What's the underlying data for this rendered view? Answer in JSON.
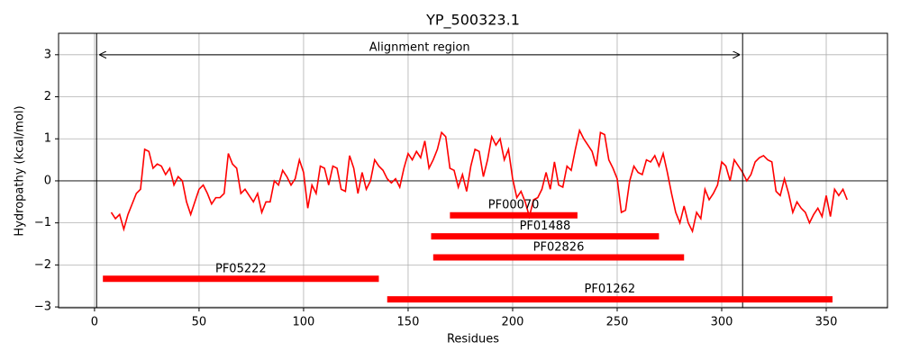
{
  "chart_data": {
    "type": "line",
    "title": "YP_500323.1",
    "xlabel": "Residues",
    "ylabel": "Hydropathy (kcal/mol)",
    "color": "#ff0000",
    "x": [
      8,
      10,
      12,
      14,
      16,
      18,
      20,
      22,
      24,
      26,
      28,
      30,
      32,
      34,
      36,
      38,
      40,
      42,
      44,
      46,
      48,
      50,
      52,
      54,
      56,
      58,
      60,
      62,
      64,
      66,
      68,
      70,
      72,
      74,
      76,
      78,
      80,
      82,
      84,
      86,
      88,
      90,
      92,
      94,
      96,
      98,
      100,
      102,
      104,
      106,
      108,
      110,
      112,
      114,
      116,
      118,
      120,
      122,
      124,
      126,
      128,
      130,
      132,
      134,
      136,
      138,
      140,
      142,
      144,
      146,
      148,
      150,
      152,
      154,
      156,
      158,
      160,
      162,
      164,
      166,
      168,
      170,
      172,
      174,
      176,
      178,
      180,
      182,
      184,
      186,
      188,
      190,
      192,
      194,
      196,
      198,
      200,
      202,
      204,
      206,
      208,
      210,
      212,
      214,
      216,
      218,
      220,
      222,
      224,
      226,
      228,
      230,
      232,
      234,
      236,
      238,
      240,
      242,
      244,
      246,
      248,
      250,
      252,
      254,
      256,
      258,
      260,
      262,
      264,
      266,
      268,
      270,
      272,
      274,
      276,
      278,
      280,
      282,
      284,
      286,
      288,
      290,
      292,
      294,
      296,
      298,
      300,
      302,
      304,
      306,
      308,
      310,
      312,
      314,
      316,
      318,
      320,
      322,
      324,
      326,
      328,
      330,
      332,
      334,
      336,
      338,
      340,
      342,
      344,
      346,
      348,
      350,
      352,
      354,
      356,
      358,
      360
    ],
    "values": [
      -0.75,
      -0.9,
      -0.8,
      -1.15,
      -0.8,
      -0.55,
      -0.3,
      -0.2,
      0.75,
      0.7,
      0.3,
      0.4,
      0.35,
      0.15,
      0.3,
      -0.1,
      0.1,
      0.0,
      -0.5,
      -0.8,
      -0.5,
      -0.2,
      -0.1,
      -0.3,
      -0.55,
      -0.4,
      -0.4,
      -0.3,
      0.65,
      0.4,
      0.3,
      -0.3,
      -0.2,
      -0.35,
      -0.5,
      -0.3,
      -0.75,
      -0.5,
      -0.5,
      0.0,
      -0.1,
      0.25,
      0.1,
      -0.1,
      0.05,
      0.5,
      0.2,
      -0.65,
      -0.1,
      -0.3,
      0.35,
      0.3,
      -0.1,
      0.35,
      0.3,
      -0.2,
      -0.25,
      0.6,
      0.3,
      -0.3,
      0.2,
      -0.2,
      0.0,
      0.5,
      0.35,
      0.25,
      0.05,
      -0.05,
      0.05,
      -0.15,
      0.3,
      0.65,
      0.5,
      0.7,
      0.55,
      0.95,
      0.3,
      0.5,
      0.75,
      1.15,
      1.05,
      0.3,
      0.25,
      -0.15,
      0.15,
      -0.25,
      0.35,
      0.75,
      0.7,
      0.1,
      0.5,
      1.05,
      0.85,
      1.0,
      0.5,
      0.75,
      0.05,
      -0.4,
      -0.25,
      -0.5,
      -0.85,
      -0.45,
      -0.4,
      -0.2,
      0.2,
      -0.2,
      0.45,
      -0.1,
      -0.15,
      0.35,
      0.25,
      0.75,
      1.2,
      1.0,
      0.85,
      0.7,
      0.35,
      1.15,
      1.1,
      0.5,
      0.3,
      0.05,
      -0.75,
      -0.7,
      0.0,
      0.35,
      0.2,
      0.15,
      0.5,
      0.45,
      0.6,
      0.35,
      0.65,
      0.2,
      -0.3,
      -0.75,
      -1.0,
      -0.6,
      -1.0,
      -1.2,
      -0.75,
      -0.9,
      -0.2,
      -0.45,
      -0.3,
      -0.1,
      0.45,
      0.35,
      0.0,
      0.5,
      0.35,
      0.2,
      0.0,
      0.15,
      0.45,
      0.55,
      0.6,
      0.5,
      0.45,
      -0.25,
      -0.35,
      0.05,
      -0.3,
      -0.75,
      -0.5,
      -0.65,
      -0.75,
      -1.0,
      -0.8,
      -0.65,
      -0.85,
      -0.35,
      -0.85,
      -0.2,
      -0.35,
      -0.2,
      -0.45
    ],
    "xlim": [
      -17.2,
      379.3
    ],
    "ylim": [
      -3.02,
      3.51
    ],
    "xticks": [
      0,
      50,
      100,
      150,
      200,
      250,
      300,
      350
    ],
    "yticks": [
      {
        "value": -3,
        "label": "−3"
      },
      {
        "value": -2,
        "label": "−2"
      },
      {
        "value": -1,
        "label": "−1"
      },
      0,
      1,
      2,
      3
    ],
    "grid": true,
    "zero_line": true,
    "alignment": {
      "label": "Alignment region",
      "start": 1,
      "end": 310,
      "y": 3
    },
    "domains": [
      {
        "label": "PF00070",
        "start": 170,
        "end": 231,
        "y": -0.82
      },
      {
        "label": "PF01488",
        "start": 161,
        "end": 270,
        "y": -1.32
      },
      {
        "label": "PF02826",
        "start": 162,
        "end": 282,
        "y": -1.82
      },
      {
        "label": "PF05222",
        "start": 4,
        "end": 136,
        "y": -2.33
      },
      {
        "label": "PF01262",
        "start": 140,
        "end": 353,
        "y": -2.82
      }
    ]
  }
}
